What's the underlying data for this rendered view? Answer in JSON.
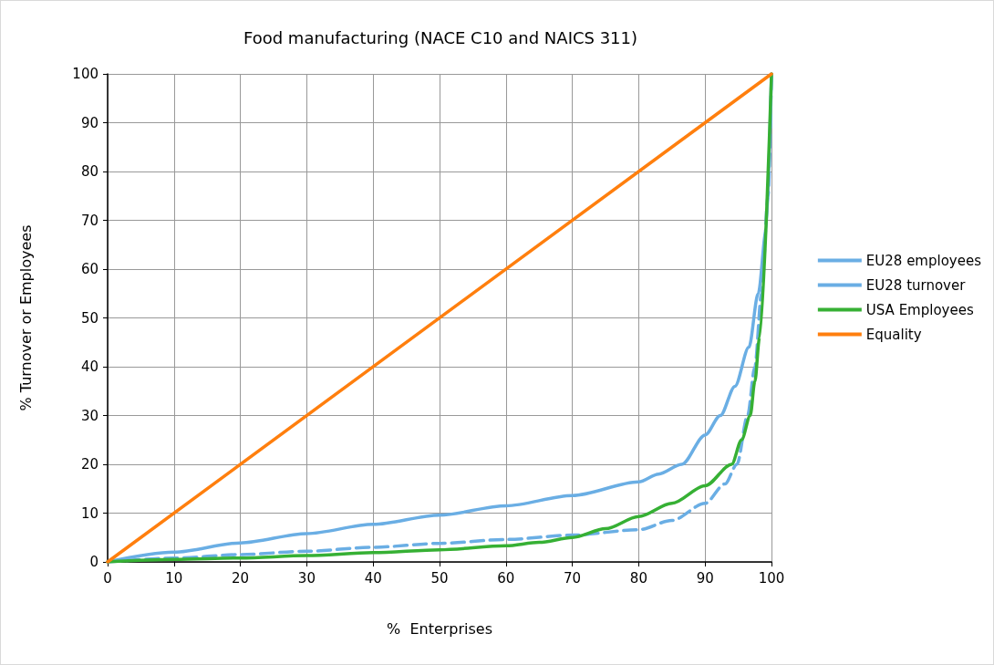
{
  "chart_data": {
    "type": "line",
    "title": "Food manufacturing (NACE C10 and NAICS 311)",
    "xlabel": "%  Enterprises",
    "ylabel": "% Turnover or Employees",
    "xlim": [
      0,
      100
    ],
    "xticks": [
      0,
      10,
      20,
      30,
      40,
      50,
      60,
      70,
      80,
      90,
      100
    ],
    "ylim": [
      0,
      100
    ],
    "yticks": [
      0,
      10,
      20,
      30,
      40,
      50,
      60,
      70,
      80,
      90,
      100
    ],
    "grid": true,
    "legend": "right",
    "marker": "none",
    "series": [
      {
        "name": "EU28 employees",
        "color": "#6aaee4",
        "line_style": "solid",
        "x": [
          0,
          10,
          20,
          30,
          40,
          50,
          60,
          70,
          80,
          83,
          86.5,
          90,
          92.3,
          94.5,
          96.6,
          98,
          99.2,
          100
        ],
        "values": [
          0,
          2,
          3.9,
          5.8,
          7.7,
          9.6,
          11.5,
          13.6,
          16.4,
          18,
          20,
          26,
          30,
          36,
          44,
          55,
          68,
          100
        ]
      },
      {
        "name": "EU28 turnover",
        "color": "#6aaee4",
        "line_style": "dashed",
        "x": [
          0,
          10,
          20,
          30,
          40,
          50,
          60,
          70,
          80,
          85,
          90,
          93,
          94.8,
          96.4,
          97.5,
          98.5,
          99.5,
          100
        ],
        "values": [
          0,
          0.8,
          1.5,
          2.2,
          3,
          3.8,
          4.6,
          5.5,
          6.6,
          8.5,
          12,
          16,
          20,
          30,
          40,
          55,
          75,
          100
        ]
      },
      {
        "name": "USA Employees",
        "color": "#36b034",
        "line_style": "solid",
        "x": [
          0,
          10,
          20,
          30,
          40,
          50,
          60,
          65,
          70,
          75,
          80,
          85,
          90,
          94,
          95.5,
          96.8,
          97.5,
          98.2,
          100
        ],
        "values": [
          0,
          0.5,
          0.8,
          1.3,
          1.9,
          2.5,
          3.3,
          4,
          5,
          6.8,
          9.3,
          12,
          15.6,
          20,
          25,
          30,
          37,
          46,
          100
        ]
      },
      {
        "name": "Equality",
        "color": "#ff7f0e",
        "line_style": "solid",
        "x": [
          0,
          100
        ],
        "values": [
          0,
          100
        ]
      }
    ]
  }
}
